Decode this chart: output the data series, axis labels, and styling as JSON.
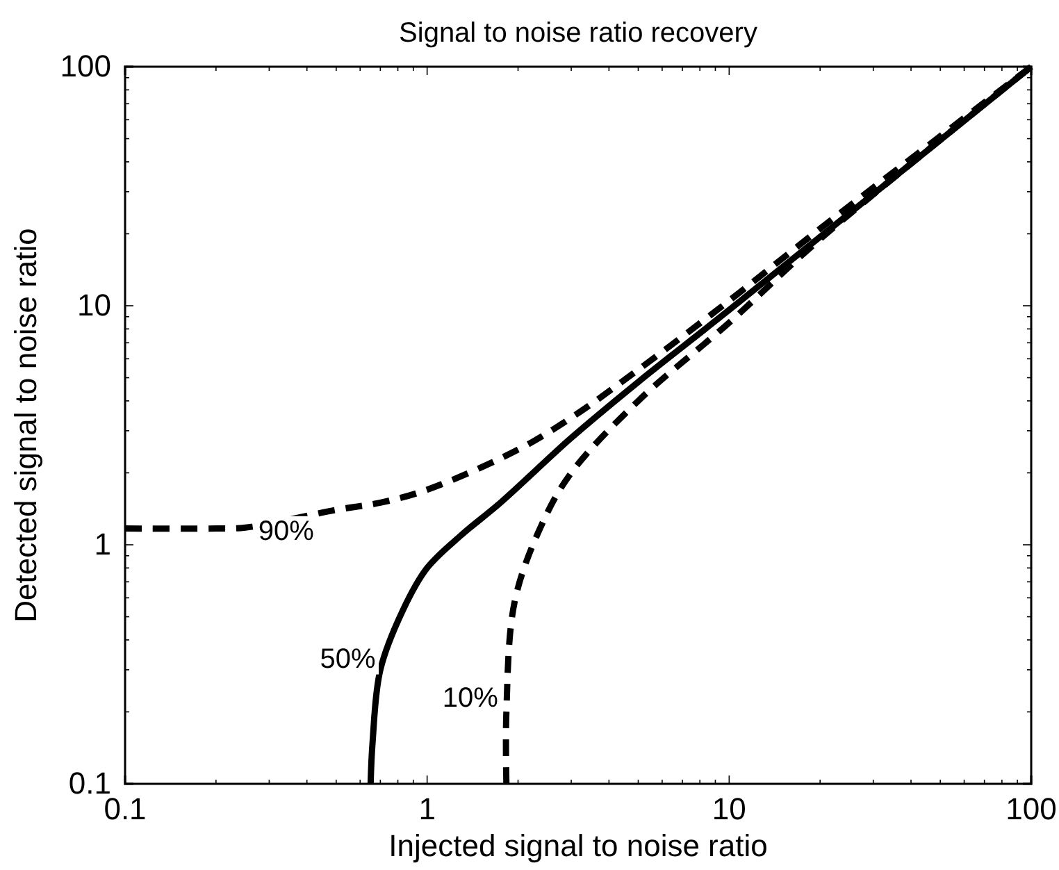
{
  "chart_data": {
    "type": "line",
    "title": "Signal to noise ratio recovery",
    "xlabel": "Injected signal to noise ratio",
    "ylabel": "Detected signal to noise ratio",
    "log": "xy",
    "xlim": [
      0.1,
      100
    ],
    "ylim": [
      0.1,
      100
    ],
    "xticks": [
      0.1,
      {
        "value": 0.2,
        "label": null
      },
      {
        "value": 0.3,
        "label": null
      },
      {
        "value": 0.4,
        "label": null
      },
      {
        "value": 0.5,
        "label": null
      },
      {
        "value": 0.6,
        "label": null
      },
      {
        "value": 0.7,
        "label": null
      },
      {
        "value": 0.8,
        "label": null
      },
      {
        "value": 0.9,
        "label": null
      },
      1,
      {
        "value": 2,
        "label": null
      },
      {
        "value": 3,
        "label": null
      },
      {
        "value": 4,
        "label": null
      },
      {
        "value": 5,
        "label": null
      },
      {
        "value": 6,
        "label": null
      },
      {
        "value": 7,
        "label": null
      },
      {
        "value": 8,
        "label": null
      },
      {
        "value": 9,
        "label": null
      },
      10,
      {
        "value": 20,
        "label": null
      },
      {
        "value": 30,
        "label": null
      },
      {
        "value": 40,
        "label": null
      },
      {
        "value": 50,
        "label": null
      },
      {
        "value": 60,
        "label": null
      },
      {
        "value": 70,
        "label": null
      },
      {
        "value": 80,
        "label": null
      },
      {
        "value": 90,
        "label": null
      },
      100
    ],
    "yticks": [
      0.1,
      {
        "value": 0.2,
        "label": null
      },
      {
        "value": 0.3,
        "label": null
      },
      {
        "value": 0.4,
        "label": null
      },
      {
        "value": 0.5,
        "label": null
      },
      {
        "value": 0.6,
        "label": null
      },
      {
        "value": 0.7,
        "label": null
      },
      {
        "value": 0.8,
        "label": null
      },
      {
        "value": 0.9,
        "label": null
      },
      1,
      {
        "value": 2,
        "label": null
      },
      {
        "value": 3,
        "label": null
      },
      {
        "value": 4,
        "label": null
      },
      {
        "value": 5,
        "label": null
      },
      {
        "value": 6,
        "label": null
      },
      {
        "value": 7,
        "label": null
      },
      {
        "value": 8,
        "label": null
      },
      {
        "value": 9,
        "label": null
      },
      10,
      {
        "value": 20,
        "label": null
      },
      {
        "value": 30,
        "label": null
      },
      {
        "value": 40,
        "label": null
      },
      {
        "value": 50,
        "label": null
      },
      {
        "value": 60,
        "label": null
      },
      {
        "value": 70,
        "label": null
      },
      {
        "value": 80,
        "label": null
      },
      {
        "value": 90,
        "label": null
      },
      100
    ],
    "grid": false,
    "marker": "none",
    "series": [
      {
        "color": "#000000",
        "line_style": "dashed",
        "x": [
          0.1,
          0.2,
          0.25,
          0.5,
          0.7,
          1,
          2,
          3,
          5,
          10,
          20,
          100
        ],
        "values": [
          1.17,
          1.17,
          1.18,
          1.4,
          1.5,
          1.7,
          2.5,
          3.4,
          5.4,
          10.5,
          21,
          100
        ]
      },
      {
        "color": "#000000",
        "line_style": "solid",
        "x": [
          0.65,
          0.66,
          0.7,
          0.83,
          1,
          1.3,
          1.75,
          3,
          5,
          10,
          100
        ],
        "values": [
          0.1,
          0.15,
          0.3,
          0.53,
          0.8,
          1.1,
          1.5,
          2.8,
          4.8,
          9.6,
          100
        ]
      },
      {
        "color": "#000000",
        "line_style": "dashed",
        "x": [
          1.83,
          1.83,
          1.95,
          2.4,
          3,
          5,
          10,
          20,
          100
        ],
        "values": [
          0.1,
          0.2,
          0.58,
          1.22,
          2,
          4,
          8.5,
          19,
          100
        ]
      }
    ],
    "annotations": [
      {
        "text": "90%",
        "x": 0.45,
        "y": 1.3
      },
      {
        "text": "50%",
        "x": 0.72,
        "y": 0.38
      },
      {
        "text": "10%",
        "x": 1.83,
        "y": 0.26
      }
    ]
  }
}
